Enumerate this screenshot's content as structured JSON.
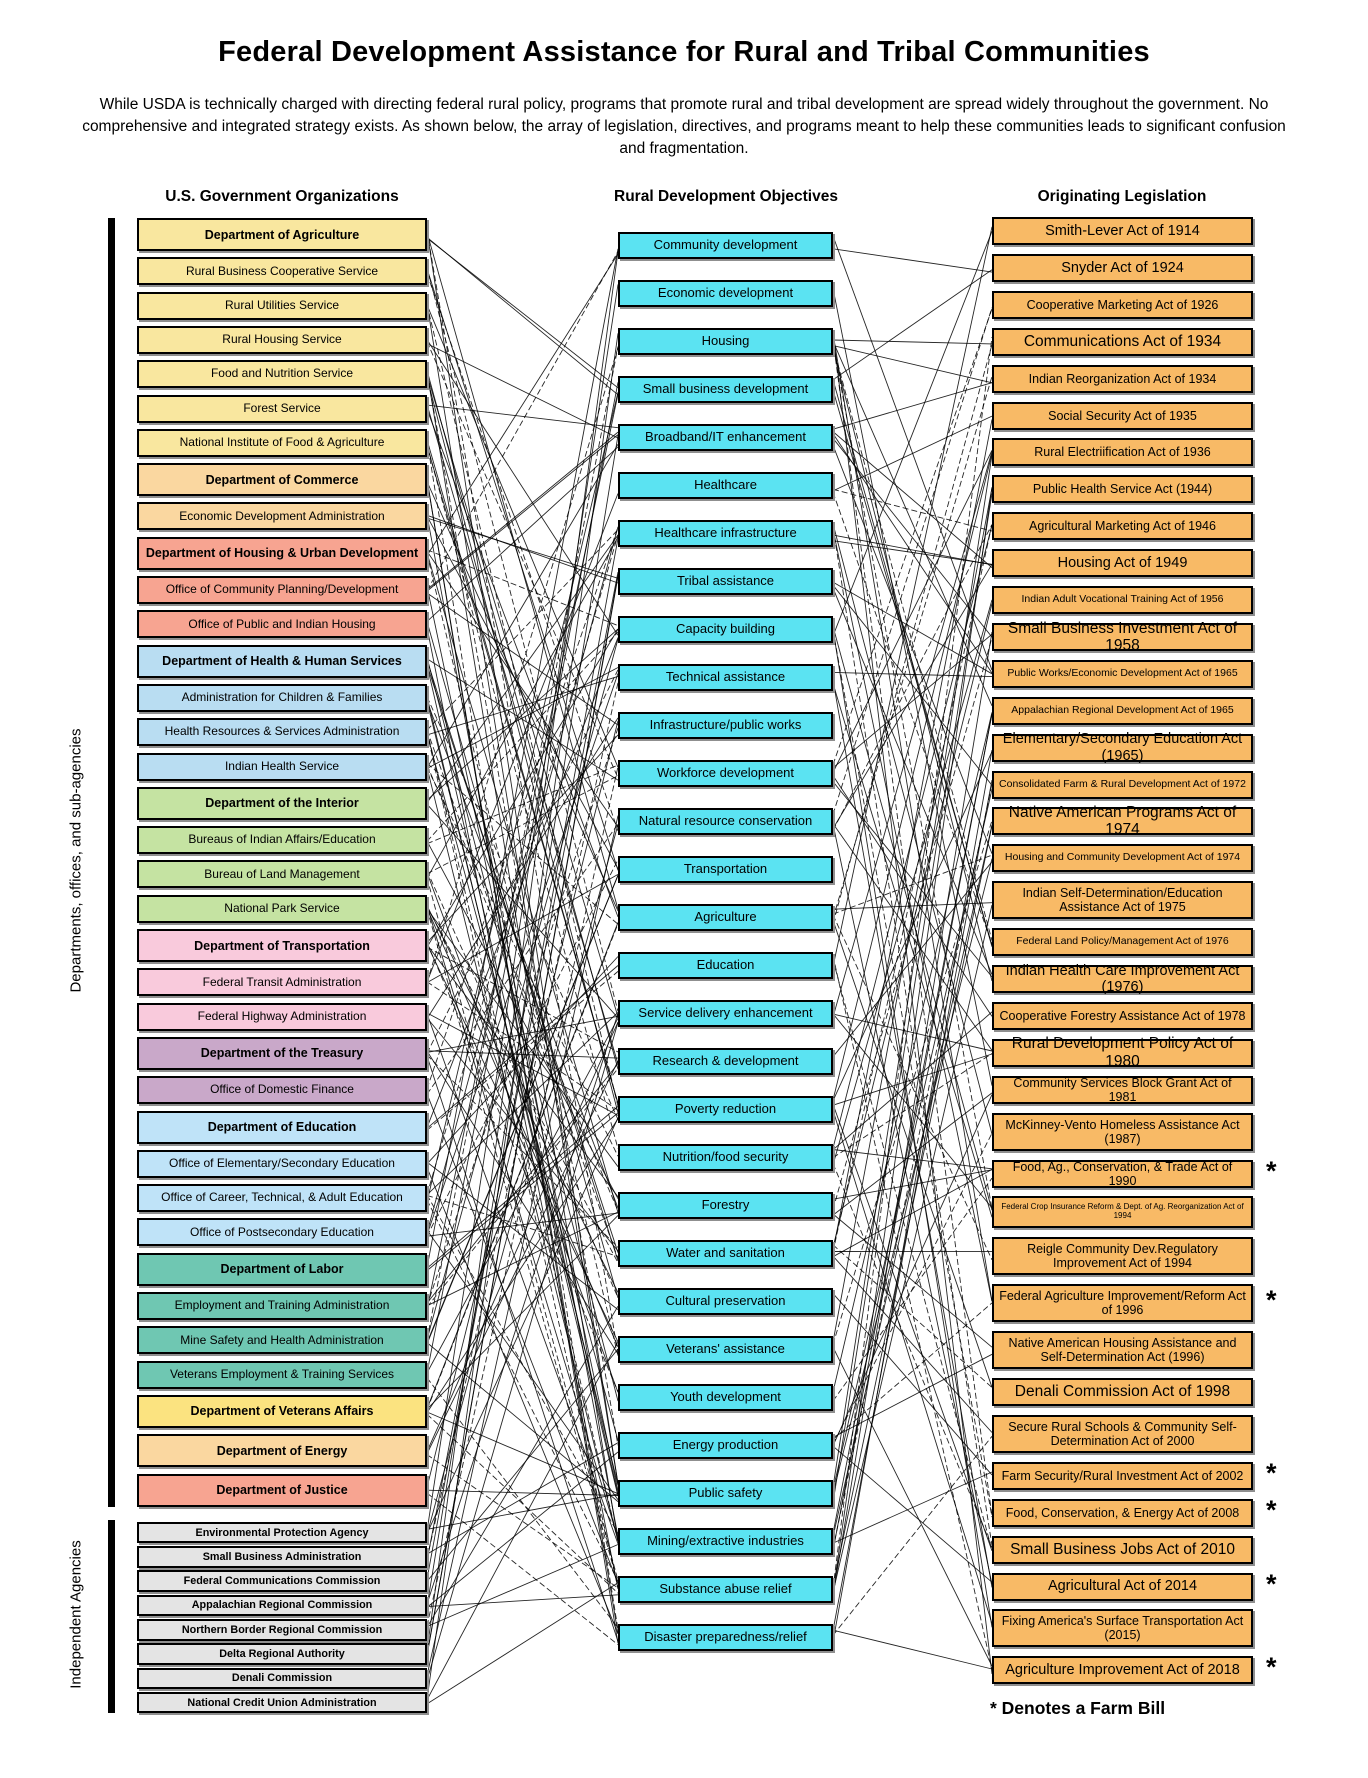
{
  "title": "Federal Development Assistance for Rural and Tribal Communities",
  "subtitle": "While USDA is technically charged with directing federal rural policy, programs that promote rural and tribal development are spread widely throughout the government. No comprehensive and integrated strategy exists. As shown below, the array of legislation, directives, and programs meant to help these communities leads to significant confusion and fragmentation.",
  "footnote": "* Denotes a Farm Bill",
  "farm_bill_marker": "*",
  "columns": {
    "organizations": {
      "header": "U.S. Government Organizations"
    },
    "objectives": {
      "header": "Rural Development Objectives"
    },
    "legislation": {
      "header": "Originating Legislation"
    }
  },
  "side_labels": {
    "departments": "Departments, offices, and sub-agencies",
    "independent": "Independent Agencies"
  },
  "colors": {
    "usda": "#F9E79F",
    "commerce": "#FAD7A0",
    "hud": "#F7A491",
    "hhs": "#B9DDF2",
    "interior": "#C5E3A2",
    "transportation": "#F9CADC",
    "treasury": "#C9A8C9",
    "education": "#BFE3F8",
    "labor": "#6FC7B2",
    "veterans": "#FBE380",
    "energy": "#FAD7A0",
    "justice": "#F7A491",
    "independent": "#E4E4E4",
    "objective": "#5BE3F2",
    "legislation": "#F8BA66",
    "edge": "#000000"
  },
  "organizations": {
    "items": [
      {
        "label": "Department of Agriculture",
        "group": "usda",
        "level": "dept"
      },
      {
        "label": "Rural Business Cooperative Service",
        "group": "usda",
        "level": "sub"
      },
      {
        "label": "Rural Utilities Service",
        "group": "usda",
        "level": "sub"
      },
      {
        "label": "Rural Housing Service",
        "group": "usda",
        "level": "sub"
      },
      {
        "label": "Food and Nutrition Service",
        "group": "usda",
        "level": "sub"
      },
      {
        "label": "Forest Service",
        "group": "usda",
        "level": "sub"
      },
      {
        "label": "National Institute of Food & Agriculture",
        "group": "usda",
        "level": "sub"
      },
      {
        "label": "Department of Commerce",
        "group": "commerce",
        "level": "dept"
      },
      {
        "label": "Economic Development Administration",
        "group": "commerce",
        "level": "sub"
      },
      {
        "label": "Department of Housing & Urban Development",
        "group": "hud",
        "level": "dept"
      },
      {
        "label": "Office of Community Planning/Development",
        "group": "hud",
        "level": "sub"
      },
      {
        "label": "Office of Public and Indian Housing",
        "group": "hud",
        "level": "sub"
      },
      {
        "label": "Department of Health & Human Services",
        "group": "hhs",
        "level": "dept"
      },
      {
        "label": "Administration for Children & Families",
        "group": "hhs",
        "level": "sub"
      },
      {
        "label": "Health Resources & Services Administration",
        "group": "hhs",
        "level": "sub"
      },
      {
        "label": "Indian Health Service",
        "group": "hhs",
        "level": "sub"
      },
      {
        "label": "Department of the Interior",
        "group": "interior",
        "level": "dept"
      },
      {
        "label": "Bureaus of Indian Affairs/Education",
        "group": "interior",
        "level": "sub"
      },
      {
        "label": "Bureau of Land Management",
        "group": "interior",
        "level": "sub"
      },
      {
        "label": "National Park Service",
        "group": "interior",
        "level": "sub"
      },
      {
        "label": "Department of Transportation",
        "group": "transportation",
        "level": "dept"
      },
      {
        "label": "Federal Transit Administration",
        "group": "transportation",
        "level": "sub"
      },
      {
        "label": "Federal Highway Administration",
        "group": "transportation",
        "level": "sub"
      },
      {
        "label": "Department of the Treasury",
        "group": "treasury",
        "level": "dept"
      },
      {
        "label": "Office of Domestic Finance",
        "group": "treasury",
        "level": "sub"
      },
      {
        "label": "Department of Education",
        "group": "education",
        "level": "dept"
      },
      {
        "label": "Office of Elementary/Secondary Education",
        "group": "education",
        "level": "sub"
      },
      {
        "label": "Office of Career, Technical, & Adult Education",
        "group": "education",
        "level": "sub"
      },
      {
        "label": "Office of Postsecondary Education",
        "group": "education",
        "level": "sub"
      },
      {
        "label": "Department of Labor",
        "group": "labor",
        "level": "dept"
      },
      {
        "label": "Employment and Training Administration",
        "group": "labor",
        "level": "sub"
      },
      {
        "label": "Mine Safety and Health Administration",
        "group": "labor",
        "level": "sub"
      },
      {
        "label": "Veterans Employment & Training Services",
        "group": "labor",
        "level": "sub"
      },
      {
        "label": "Department of Veterans Affairs",
        "group": "veterans",
        "level": "dept"
      },
      {
        "label": "Department of Energy",
        "group": "energy",
        "level": "dept"
      },
      {
        "label": "Department of Justice",
        "group": "justice",
        "level": "dept"
      },
      {
        "label": "Environmental Protection Agency",
        "group": "independent",
        "level": "indep"
      },
      {
        "label": "Small Business Administration",
        "group": "independent",
        "level": "indep"
      },
      {
        "label": "Federal Communications Commission",
        "group": "independent",
        "level": "indep"
      },
      {
        "label": "Appalachian Regional Commission",
        "group": "independent",
        "level": "indep"
      },
      {
        "label": "Northern Border Regional Commission",
        "group": "independent",
        "level": "indep"
      },
      {
        "label": "Delta Regional Authority",
        "group": "independent",
        "level": "indep"
      },
      {
        "label": "Denali Commission",
        "group": "independent",
        "level": "indep"
      },
      {
        "label": "National Credit Union Administration",
        "group": "independent",
        "level": "indep"
      }
    ]
  },
  "objectives": {
    "items": [
      "Community development",
      "Economic development",
      "Housing",
      "Small business development",
      "Broadband/IT enhancement",
      "Healthcare",
      "Healthcare infrastructure",
      "Tribal assistance",
      "Capacity building",
      "Technical assistance",
      "Infrastructure/public works",
      "Workforce development",
      "Natural resource conservation",
      "Transportation",
      "Agriculture",
      "Education",
      "Service delivery enhancement",
      "Research & development",
      "Poverty reduction",
      "Nutrition/food security",
      "Forestry",
      "Water and sanitation",
      "Cultural preservation",
      "Veterans' assistance",
      "Youth development",
      "Energy production",
      "Public safety",
      "Mining/extractive industries",
      "Substance abuse relief",
      "Disaster preparedness/relief"
    ]
  },
  "legislation": {
    "items": [
      {
        "label": "Smith-Lever Act of 1914",
        "size": "ml",
        "lines": 1,
        "farm_bill": false
      },
      {
        "label": "Snyder Act of 1924",
        "size": "ml",
        "lines": 1,
        "farm_bill": false
      },
      {
        "label": "Cooperative Marketing Act of 1926",
        "size": "md",
        "lines": 1,
        "farm_bill": false
      },
      {
        "label": "Communications Act of 1934",
        "size": "lg",
        "lines": 1,
        "farm_bill": false
      },
      {
        "label": "Indian Reorganization Act of 1934",
        "size": "md",
        "lines": 1,
        "farm_bill": false
      },
      {
        "label": "Social Security Act of 1935",
        "size": "md",
        "lines": 1,
        "farm_bill": false
      },
      {
        "label": "Rural Electriification Act of 1936",
        "size": "md",
        "lines": 1,
        "farm_bill": false
      },
      {
        "label": "Public Health Service Act (1944)",
        "size": "md",
        "lines": 1,
        "farm_bill": false
      },
      {
        "label": "Agricultural Marketing Act of 1946",
        "size": "md",
        "lines": 1,
        "farm_bill": false
      },
      {
        "label": "Housing Act of 1949",
        "size": "ml",
        "lines": 1,
        "farm_bill": false
      },
      {
        "label": "Indian Adult Vocational Training Act of 1956",
        "size": "sm",
        "lines": 1,
        "farm_bill": false
      },
      {
        "label": "Small Business Investment Act of 1958",
        "size": "lg",
        "lines": 1,
        "farm_bill": false
      },
      {
        "label": "Public Works/Economic Development Act of 1965",
        "size": "sm",
        "lines": 1,
        "farm_bill": false
      },
      {
        "label": "Appalachian Regional Development Act of 1965",
        "size": "sm",
        "lines": 1,
        "farm_bill": false
      },
      {
        "label": "Elementary/Secondary Education Act (1965)",
        "size": "ml",
        "lines": 1,
        "farm_bill": false
      },
      {
        "label": "Consolidated Farm & Rural Development Act of 1972",
        "size": "sm",
        "lines": 1,
        "farm_bill": false
      },
      {
        "label": "Native American Programs Act of 1974",
        "size": "lg",
        "lines": 1,
        "farm_bill": false
      },
      {
        "label": "Housing and Community Development Act of 1974",
        "size": "sm",
        "lines": 1,
        "farm_bill": false
      },
      {
        "label": "Indian Self-Determination/Education Assistance Act of 1975",
        "size": "md",
        "lines": 2,
        "farm_bill": false
      },
      {
        "label": "Federal Land Policy/Management Act of 1976",
        "size": "sm",
        "lines": 1,
        "farm_bill": false
      },
      {
        "label": "Indian Health Care Improvement Act (1976)",
        "size": "ml",
        "lines": 1,
        "farm_bill": false
      },
      {
        "label": "Cooperative Forestry Assistance Act of 1978",
        "size": "md",
        "lines": 1,
        "farm_bill": false
      },
      {
        "label": "Rural Development Policy Act of 1980",
        "size": "lg",
        "lines": 1,
        "farm_bill": false
      },
      {
        "label": "Community Services Block Grant Act of 1981",
        "size": "md",
        "lines": 1,
        "farm_bill": false
      },
      {
        "label": "McKinney-Vento Homeless Assistance Act (1987)",
        "size": "md",
        "lines": 2,
        "farm_bill": false
      },
      {
        "label": "Food, Ag., Conservation, & Trade Act of 1990",
        "size": "md",
        "lines": 1,
        "farm_bill": true
      },
      {
        "label": "Federal Crop Insurance Reform & Dept. of Ag. Reorganization Act of 1994",
        "size": "xs",
        "lines": 2,
        "farm_bill": false
      },
      {
        "label": "Reigle Community Dev.Regulatory Improvement Act of 1994",
        "size": "md",
        "lines": 2,
        "farm_bill": false
      },
      {
        "label": "Federal Agriculture Improvement/Reform Act of 1996",
        "size": "md",
        "lines": 2,
        "farm_bill": true
      },
      {
        "label": "Native American Housing Assistance and Self-Determination Act (1996)",
        "size": "md",
        "lines": 2,
        "farm_bill": false
      },
      {
        "label": "Denali Commission Act of 1998",
        "size": "lg",
        "lines": 1,
        "farm_bill": false
      },
      {
        "label": "Secure Rural Schools & Community Self-Determination Act of 2000",
        "size": "md",
        "lines": 2,
        "farm_bill": false
      },
      {
        "label": "Farm Security/Rural Investment Act of 2002",
        "size": "md",
        "lines": 1,
        "farm_bill": true
      },
      {
        "label": "Food, Conservation, & Energy Act of 2008",
        "size": "md",
        "lines": 1,
        "farm_bill": true
      },
      {
        "label": "Small Business Jobs Act of 2010",
        "size": "lg",
        "lines": 1,
        "farm_bill": false
      },
      {
        "label": "Agricultural Act of 2014",
        "size": "ml",
        "lines": 1,
        "farm_bill": true
      },
      {
        "label": "Fixing America's Surface Transportation Act (2015)",
        "size": "md",
        "lines": 2,
        "farm_bill": false
      },
      {
        "label": "Agriculture Improvement Act of 2018",
        "size": "ml",
        "lines": 1,
        "farm_bill": true
      }
    ]
  }
}
